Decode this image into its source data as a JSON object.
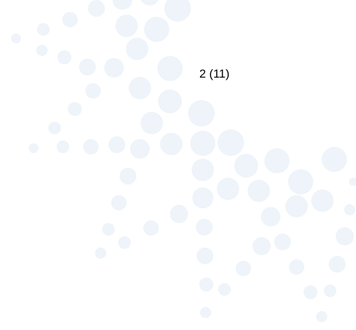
{
  "page_number": "2 (11)"
}
